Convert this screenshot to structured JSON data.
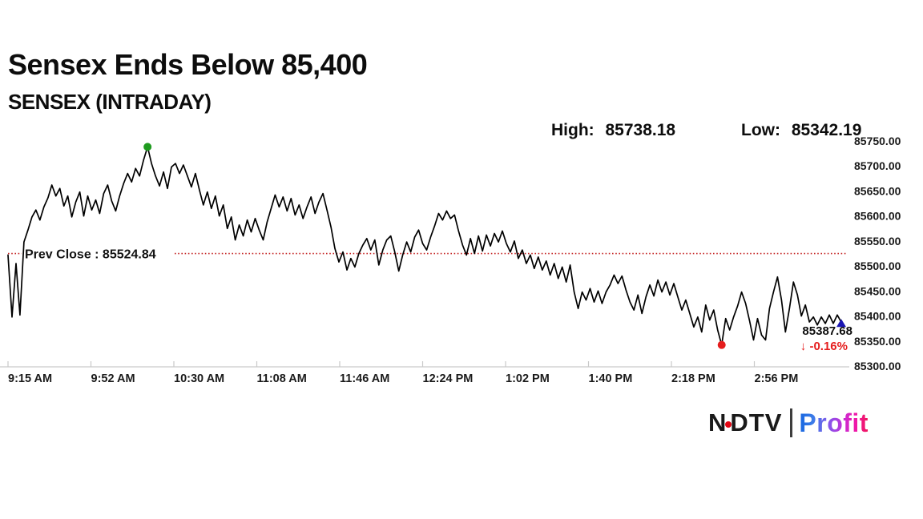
{
  "header": {
    "title": "Sensex Ends Below 85,400",
    "subtitle": "SENSEX (INTRADAY)"
  },
  "stats": {
    "high_label": "High:",
    "high_value": "85738.18",
    "low_label": "Low:",
    "low_value": "85342.19"
  },
  "annotations": {
    "prev_close_label": "Prev Close : 85524.84",
    "last_price": "85387.68",
    "change": "↓ -0.16%"
  },
  "branding": {
    "ndtv": [
      "N",
      "DTV"
    ],
    "profit": "Profit"
  },
  "colors": {
    "line": "#000000",
    "prev_close_line": "#c62828",
    "high_marker": "#1f9b1f",
    "low_marker": "#e51d1d",
    "last_marker": "#1a16b4",
    "change_text": "#e51d1d",
    "axis": "#c9c9c9",
    "tick_text": "#1a1a1a"
  },
  "chart_data": {
    "type": "line",
    "title": "SENSEX (INTRADAY)",
    "xlabel": "",
    "ylabel": "",
    "x_labels": [
      "9:15 AM",
      "9:52 AM",
      "10:30 AM",
      "11:08 AM",
      "11:46 AM",
      "12:24 PM",
      "1:02 PM",
      "1:40 PM",
      "2:18 PM",
      "2:56 PM"
    ],
    "y_ticks": [
      "85750.00",
      "85700.00",
      "85650.00",
      "85600.00",
      "85550.00",
      "85500.00",
      "85450.00",
      "85400.00",
      "85350.00",
      "85300.00"
    ],
    "ylim": [
      85300,
      85750
    ],
    "grid": false,
    "legend": false,
    "prev_close": 85524.84,
    "high": 85738.18,
    "low": 85342.19,
    "last": 85387.68,
    "change_pct": -0.16,
    "values": [
      85522,
      85398,
      85505,
      85402,
      85548,
      85572,
      85598,
      85612,
      85592,
      85618,
      85636,
      85662,
      85640,
      85655,
      85620,
      85640,
      85598,
      85628,
      85648,
      85600,
      85640,
      85612,
      85632,
      85605,
      85645,
      85662,
      85630,
      85610,
      85640,
      85665,
      85685,
      85668,
      85695,
      85680,
      85712,
      85738.18,
      85705,
      85680,
      85660,
      85688,
      85655,
      85698,
      85705,
      85685,
      85702,
      85680,
      85658,
      85685,
      85652,
      85622,
      85648,
      85615,
      85640,
      85600,
      85622,
      85575,
      85598,
      85552,
      85582,
      85560,
      85592,
      85568,
      85595,
      85572,
      85552,
      85588,
      85615,
      85642,
      85618,
      85638,
      85610,
      85635,
      85602,
      85622,
      85595,
      85618,
      85638,
      85605,
      85628,
      85645,
      85612,
      85578,
      85535,
      85508,
      85528,
      85492,
      85515,
      85498,
      85525,
      85542,
      85555,
      85532,
      85552,
      85502,
      85532,
      85552,
      85560,
      85528,
      85490,
      85522,
      85548,
      85528,
      85558,
      85572,
      85545,
      85532,
      85558,
      85580,
      85605,
      85592,
      85610,
      85595,
      85602,
      85570,
      85542,
      85522,
      85555,
      85525,
      85560,
      85530,
      85562,
      85540,
      85565,
      85548,
      85570,
      85545,
      85528,
      85550,
      85515,
      85532,
      85505,
      85522,
      85495,
      85518,
      85492,
      85510,
      85482,
      85505,
      85475,
      85498,
      85468,
      85502,
      85448,
      85415,
      85448,
      85432,
      85455,
      85428,
      85450,
      85425,
      85448,
      85462,
      85482,
      85465,
      85480,
      85452,
      85428,
      85412,
      85442,
      85405,
      85438,
      85462,
      85440,
      85472,
      85448,
      85468,
      85442,
      85465,
      85438,
      85412,
      85432,
      85405,
      85378,
      85398,
      85368,
      85422,
      85392,
      85412,
      85372,
      85342.19,
      85395,
      85372,
      85398,
      85420,
      85448,
      85425,
      85390,
      85352,
      85395,
      85362,
      85352,
      85415,
      85448,
      85478,
      85432,
      85368,
      85415,
      85468,
      85442,
      85400,
      85422,
      85388,
      85398,
      85382,
      85398,
      85385,
      85402,
      85385,
      85402,
      85387.68
    ]
  }
}
